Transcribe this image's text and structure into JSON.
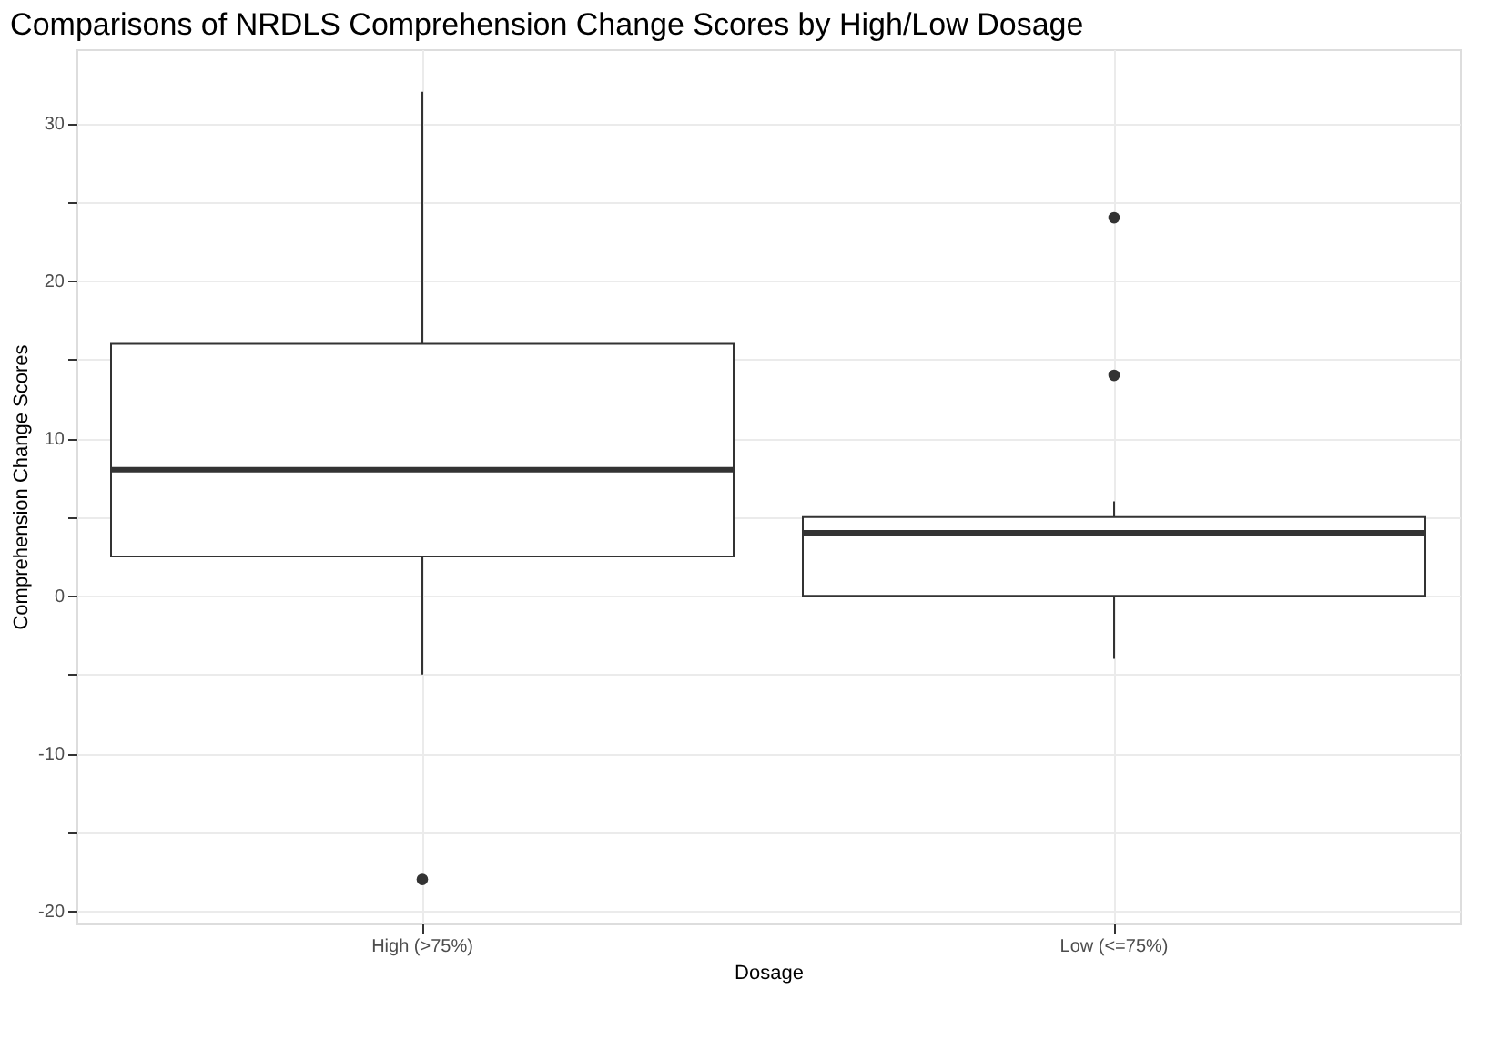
{
  "chart_data": {
    "type": "box",
    "title": "Comparisons of NRDLS Comprehension Change Scores by High/Low Dosage",
    "xlabel": "Dosage",
    "ylabel": "Comprehension Change Scores",
    "categories": [
      "High (>75%)",
      "Low (<=75%)"
    ],
    "boxes": [
      {
        "low": -5,
        "q1": 2.5,
        "median": 8,
        "q3": 16,
        "high": 32,
        "outliers": [
          -18
        ]
      },
      {
        "low": -4,
        "q1": 0,
        "median": 4,
        "q3": 5,
        "high": 6,
        "outliers": [
          14,
          24
        ]
      }
    ],
    "ylim": [
      -20.8,
      34.7
    ],
    "yticks": [
      -20,
      {
        "value": -15,
        "label": null
      },
      -10,
      {
        "value": -5,
        "label": null
      },
      0,
      {
        "value": 5,
        "label": null
      },
      10,
      {
        "value": 15,
        "label": null
      },
      20,
      {
        "value": 25,
        "label": null
      },
      30
    ],
    "grid": true
  }
}
